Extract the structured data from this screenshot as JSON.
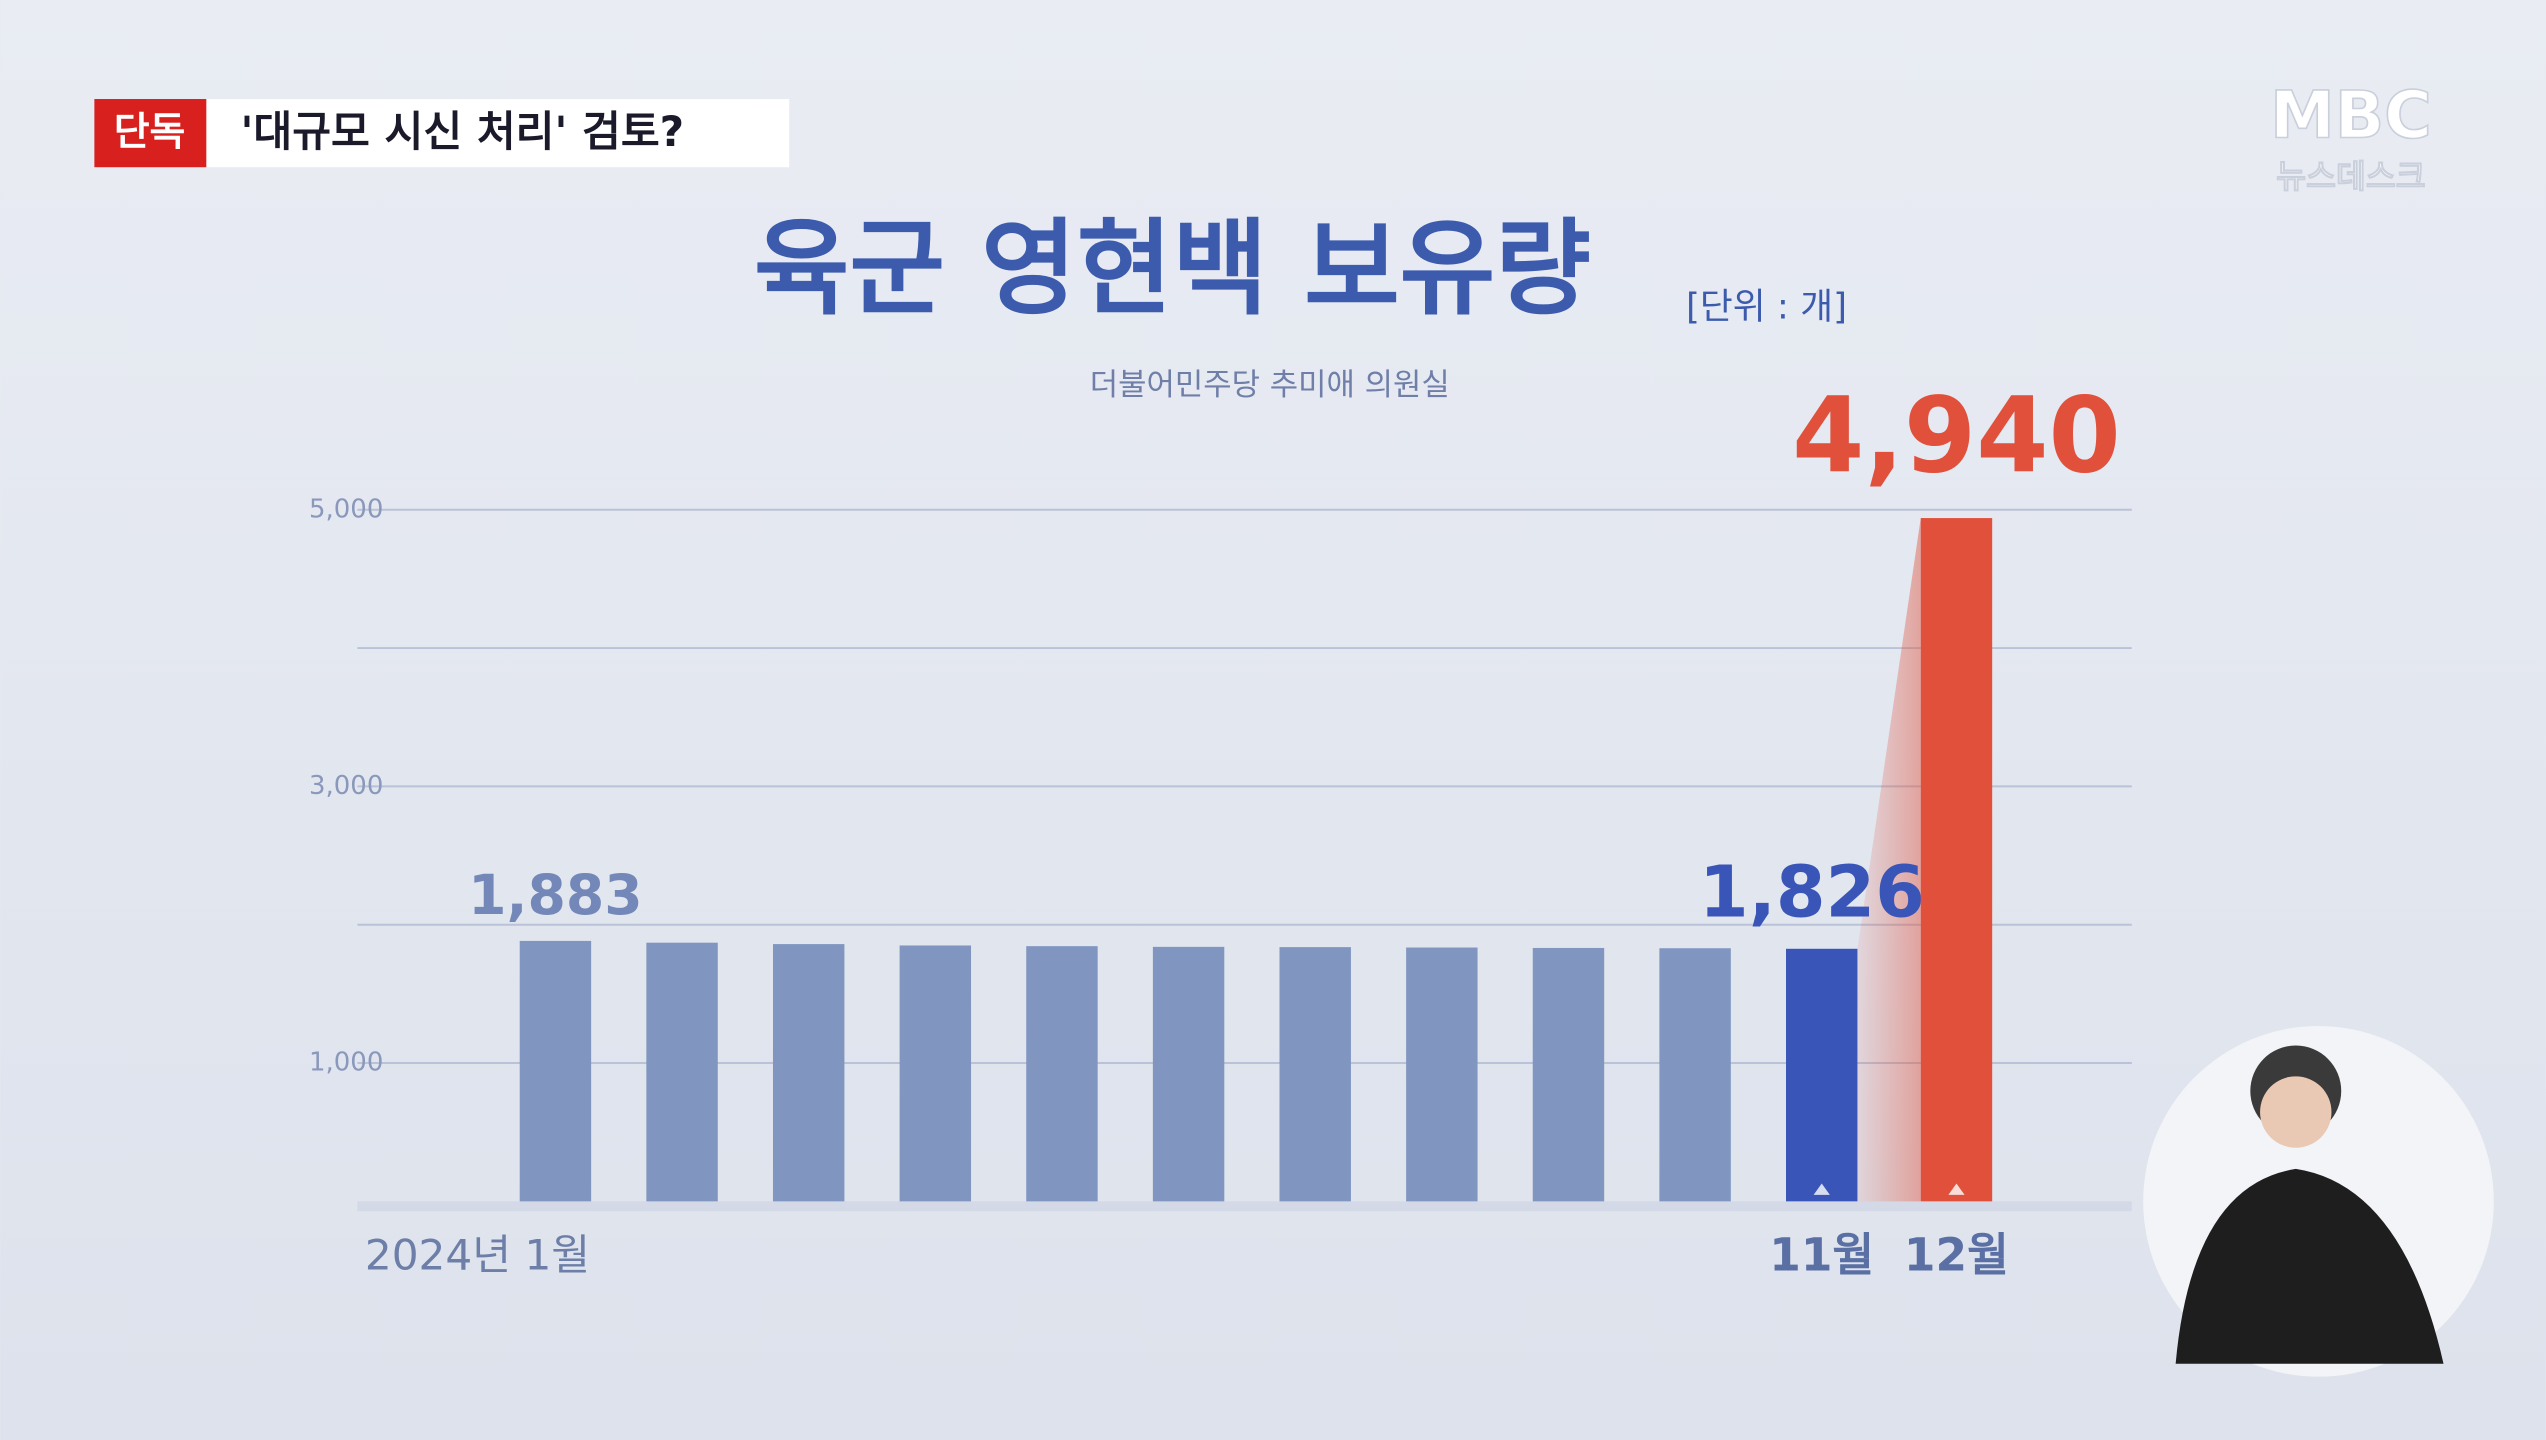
{
  "header": {
    "badge": "단독",
    "headline": "'대규모 시신 처리' 검토?",
    "logo": "MBC",
    "program": "뉴스데스크"
  },
  "chart_data": {
    "type": "bar",
    "title": "육군 영현백 보유량",
    "unit": "[단위 : 개]",
    "subtitle": "더불어민주당 추미애 의원실",
    "categories": [
      "2024년 1월",
      null,
      null,
      null,
      null,
      null,
      null,
      null,
      null,
      null,
      "11월",
      "12월"
    ],
    "values": [
      1883,
      1870,
      1860,
      1850,
      1845,
      1840,
      1838,
      1835,
      1832,
      1830,
      1826,
      4940
    ],
    "value_labels": [
      "1,883",
      null,
      null,
      null,
      null,
      null,
      null,
      null,
      null,
      null,
      "1,826",
      "4,940"
    ],
    "bar_colors": [
      "#8096c0",
      "#8096c0",
      "#8096c0",
      "#8096c0",
      "#8096c0",
      "#8096c0",
      "#8096c0",
      "#8096c0",
      "#8096c0",
      "#8096c0",
      "#3a55b8",
      "#e0503a"
    ],
    "ylim": [
      0,
      5000
    ],
    "yticks": [
      {
        "value": 1000,
        "label": "1,000"
      },
      {
        "value": 2000,
        "label": null
      },
      {
        "value": 3000,
        "label": "3,000"
      },
      {
        "value": 4000,
        "label": null
      },
      {
        "value": 5000,
        "label": "5,000"
      }
    ],
    "grid": true
  }
}
